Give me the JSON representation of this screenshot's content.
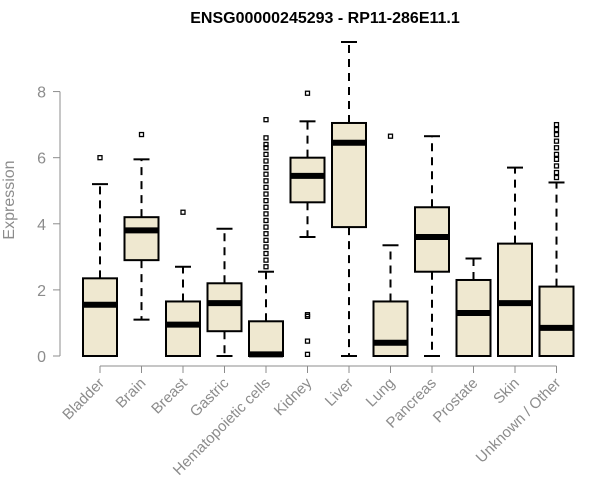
{
  "chart_data": {
    "type": "boxplot",
    "title": "ENSG00000245293 - RP11-286E11.1",
    "ylabel": "Expression",
    "xlabel": "",
    "ylim": [
      0,
      9.5
    ],
    "yticks": [
      0,
      2,
      4,
      6,
      8
    ],
    "box_color": "#efe8d0",
    "categories": [
      "Bladder",
      "Brain",
      "Breast",
      "Gastric",
      "Hematopoietic cells",
      "Kidney",
      "Liver",
      "Lung",
      "Pancreas",
      "Prostate",
      "Skin",
      "Unknown / Other"
    ],
    "boxes": [
      {
        "name": "Bladder",
        "min": 0,
        "q1": 0,
        "median": 1.55,
        "q3": 2.35,
        "max": 5.2,
        "outliers": [
          6.0
        ]
      },
      {
        "name": "Brain",
        "min": 1.1,
        "q1": 2.9,
        "median": 3.8,
        "q3": 4.2,
        "max": 5.95,
        "outliers": [
          6.7
        ]
      },
      {
        "name": "Breast",
        "min": 0,
        "q1": 0,
        "median": 0.95,
        "q3": 1.65,
        "max": 2.7,
        "outliers": [
          4.35
        ]
      },
      {
        "name": "Gastric",
        "min": 0,
        "q1": 0.75,
        "median": 1.6,
        "q3": 2.2,
        "max": 3.85,
        "outliers": []
      },
      {
        "name": "Hematopoietic cells",
        "min": 0,
        "q1": 0,
        "median": 0.05,
        "q3": 1.05,
        "max": 2.55,
        "outliers": [
          2.7,
          2.9,
          3.1,
          3.3,
          3.5,
          3.7,
          3.9,
          4.1,
          4.3,
          4.5,
          4.7,
          4.9,
          5.1,
          5.3,
          5.5,
          5.7,
          5.9,
          6.1,
          6.3,
          6.4,
          6.6,
          7.15
        ]
      },
      {
        "name": "Kidney",
        "min": 3.6,
        "q1": 4.65,
        "median": 5.45,
        "q3": 6.0,
        "max": 7.1,
        "outliers": [
          7.95,
          1.25,
          1.2,
          0.45,
          0.05
        ]
      },
      {
        "name": "Liver",
        "min": 0,
        "q1": 3.9,
        "median": 6.45,
        "q3": 7.05,
        "max": 9.5,
        "outliers": []
      },
      {
        "name": "Lung",
        "min": 0,
        "q1": 0,
        "median": 0.4,
        "q3": 1.65,
        "max": 3.35,
        "outliers": [
          6.65
        ]
      },
      {
        "name": "Pancreas",
        "min": 0,
        "q1": 2.55,
        "median": 3.6,
        "q3": 4.5,
        "max": 6.65,
        "outliers": []
      },
      {
        "name": "Prostate",
        "min": 0,
        "q1": 0,
        "median": 1.3,
        "q3": 2.3,
        "max": 2.95,
        "outliers": []
      },
      {
        "name": "Skin",
        "min": 0,
        "q1": 0,
        "median": 1.6,
        "q3": 3.4,
        "max": 5.7,
        "outliers": []
      },
      {
        "name": "Unknown / Other",
        "min": 0,
        "q1": 0,
        "median": 0.85,
        "q3": 2.1,
        "max": 5.25,
        "outliers": [
          5.4,
          5.55,
          5.75,
          5.95,
          6.1,
          6.3,
          6.5,
          6.7,
          6.85,
          7.0
        ]
      }
    ]
  }
}
